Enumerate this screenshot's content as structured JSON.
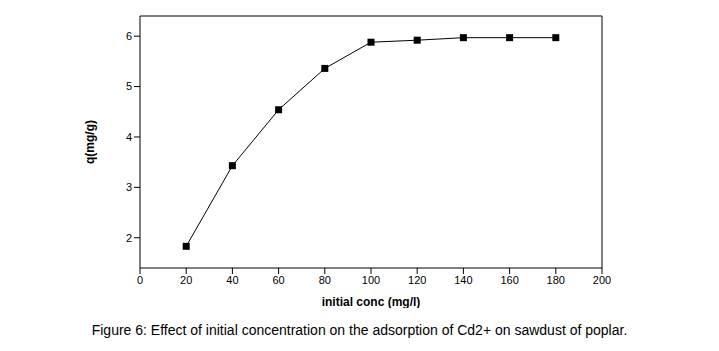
{
  "chart_data": {
    "type": "line",
    "caption": "Figure 6: Effect of initial concentration on the adsorption of Cd2+ on sawdust of poplar.",
    "x_label": "initial conc (mg/l)",
    "y_label": "q(mg/g)",
    "x": [
      20,
      40,
      60,
      80,
      100,
      120,
      140,
      160,
      180
    ],
    "values": [
      1.83,
      3.43,
      4.54,
      5.36,
      5.88,
      5.92,
      5.97,
      5.97,
      5.97
    ],
    "color": "#000000",
    "marker": "square",
    "xlim": [
      0,
      200
    ],
    "xticks": [
      0,
      20,
      40,
      60,
      80,
      100,
      120,
      140,
      160,
      180,
      200
    ],
    "ylim": [
      1.4,
      6.4
    ],
    "yticks": [
      2,
      3,
      4,
      5,
      6
    ],
    "grid": false
  }
}
